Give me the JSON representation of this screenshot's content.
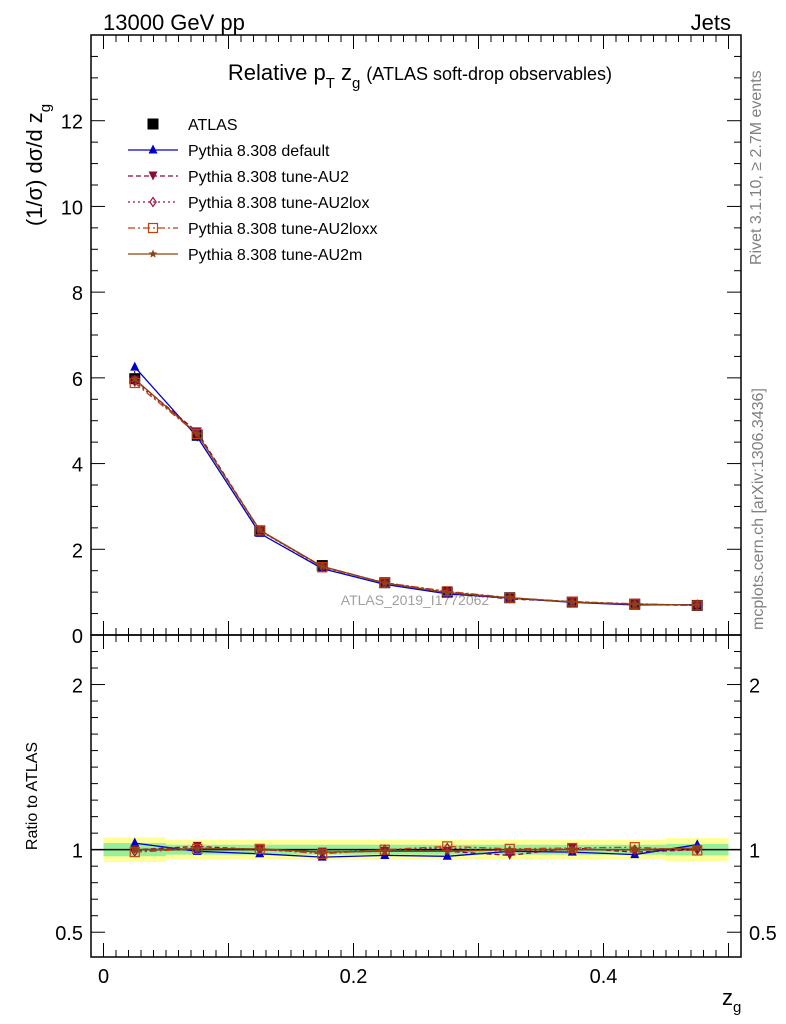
{
  "header": {
    "left": "13000 GeV pp",
    "right": "Jets"
  },
  "side_labels": {
    "rivet": "Rivet 3.1.10, ≥ 2.7M events",
    "mcplots": "mcplots.cern.ch [arXiv:1306.3436]"
  },
  "chart_data": [
    {
      "type": "line",
      "title_parts": {
        "main": "Relative p",
        "sub_T": "T",
        "z": "z",
        "sub_g": "g",
        "suffix": "(ATLAS soft-drop observables)"
      },
      "ylabel_parts": {
        "main": "(1/σ) dσ/d z",
        "sub": "g"
      },
      "ylim": [
        0,
        14
      ],
      "xlim": [
        -0.01,
        0.51
      ],
      "yticks": [
        0,
        2,
        4,
        6,
        8,
        10,
        12
      ],
      "ytick_labels": [
        "0",
        "2",
        "4",
        "6",
        "8",
        "10",
        "12"
      ],
      "watermark": "ATLAS_2019_I1772062",
      "legend_position": "top-left",
      "x": [
        0.025,
        0.075,
        0.125,
        0.175,
        0.225,
        0.275,
        0.325,
        0.375,
        0.425,
        0.475
      ],
      "series": [
        {
          "name": "ATLAS",
          "color": "#000000",
          "marker": "square",
          "line": "none",
          "values": [
            5.98,
            4.66,
            2.43,
            1.62,
            1.22,
            1.0,
            0.87,
            0.77,
            0.72,
            0.69
          ]
        },
        {
          "name": "Pythia 8.308 default",
          "color": "#0000cc",
          "marker": "triangle-up",
          "line": "solid",
          "values": [
            6.25,
            4.62,
            2.37,
            1.55,
            1.18,
            0.96,
            0.86,
            0.76,
            0.7,
            0.71
          ]
        },
        {
          "name": "Pythia 8.308 tune-AU2",
          "color": "#8b0a3c",
          "marker": "triangle-down",
          "line": "dashed",
          "values": [
            5.95,
            4.74,
            2.44,
            1.6,
            1.21,
            0.99,
            0.84,
            0.78,
            0.71,
            0.69
          ]
        },
        {
          "name": "Pythia 8.308 tune-AU2lox",
          "color": "#a01040",
          "marker": "diamond-open",
          "line": "dotted",
          "values": [
            5.92,
            4.7,
            2.43,
            1.59,
            1.22,
            1.01,
            0.86,
            0.77,
            0.72,
            0.69
          ]
        },
        {
          "name": "Pythia 8.308 tune-AU2loxx",
          "color": "#c04010",
          "marker": "square-open",
          "line": "dashdot",
          "values": [
            5.88,
            4.69,
            2.44,
            1.58,
            1.22,
            1.02,
            0.87,
            0.78,
            0.73,
            0.69
          ]
        },
        {
          "name": "Pythia 8.308 tune-AU2m",
          "color": "#8b4513",
          "marker": "star",
          "line": "solid",
          "values": [
            5.97,
            4.69,
            2.45,
            1.6,
            1.21,
            0.99,
            0.87,
            0.77,
            0.72,
            0.7
          ]
        }
      ]
    },
    {
      "type": "line",
      "ylabel": "Ratio to ATLAS",
      "xlabel_parts": {
        "main": "z",
        "sub": "g"
      },
      "ylim": [
        0.35,
        2.3
      ],
      "yticks": [
        0.5,
        1,
        2
      ],
      "ytick_labels": [
        "0.5",
        "1",
        "2"
      ],
      "xticks": [
        0,
        0.2,
        0.4
      ],
      "xtick_labels": [
        "0",
        "0.2",
        "0.4"
      ],
      "x": [
        0.025,
        0.075,
        0.125,
        0.175,
        0.225,
        0.275,
        0.325,
        0.375,
        0.425,
        0.475
      ],
      "bands": {
        "yellow_halfwidth": [
          0.075,
          0.06,
          0.06,
          0.06,
          0.06,
          0.06,
          0.06,
          0.06,
          0.06,
          0.07
        ],
        "green_halfwidth": [
          0.04,
          0.03,
          0.03,
          0.03,
          0.03,
          0.03,
          0.03,
          0.03,
          0.03,
          0.035
        ],
        "yellow_color": "#ffff99",
        "green_color": "#99ee99"
      },
      "series": [
        {
          "name": "Pythia 8.308 default",
          "color": "#0000cc",
          "marker": "triangle-up",
          "line": "solid",
          "values": [
            1.04,
            0.99,
            0.975,
            0.955,
            0.965,
            0.96,
            0.99,
            0.985,
            0.97,
            1.03
          ]
        },
        {
          "name": "Pythia 8.308 tune-AU2",
          "color": "#8b0a3c",
          "marker": "triangle-down",
          "line": "dashed",
          "values": [
            1.0,
            1.02,
            1.0,
            0.985,
            0.99,
            0.99,
            0.965,
            1.01,
            0.985,
            1.0
          ]
        },
        {
          "name": "Pythia 8.308 tune-AU2lox",
          "color": "#a01040",
          "marker": "diamond-open",
          "line": "dotted",
          "values": [
            0.99,
            1.01,
            1.0,
            0.98,
            1.0,
            1.01,
            0.99,
            1.0,
            1.0,
            1.0
          ]
        },
        {
          "name": "Pythia 8.308 tune-AU2loxx",
          "color": "#c04010",
          "marker": "square-open",
          "line": "dashdot",
          "values": [
            0.985,
            1.005,
            1.005,
            0.975,
            1.0,
            1.02,
            1.005,
            1.01,
            1.015,
            0.995
          ]
        },
        {
          "name": "Pythia 8.308 tune-AU2m",
          "color": "#8b4513",
          "marker": "star",
          "line": "solid",
          "values": [
            1.0,
            1.005,
            1.005,
            0.985,
            0.99,
            0.99,
            1.0,
            1.0,
            1.0,
            1.01
          ]
        }
      ]
    }
  ]
}
